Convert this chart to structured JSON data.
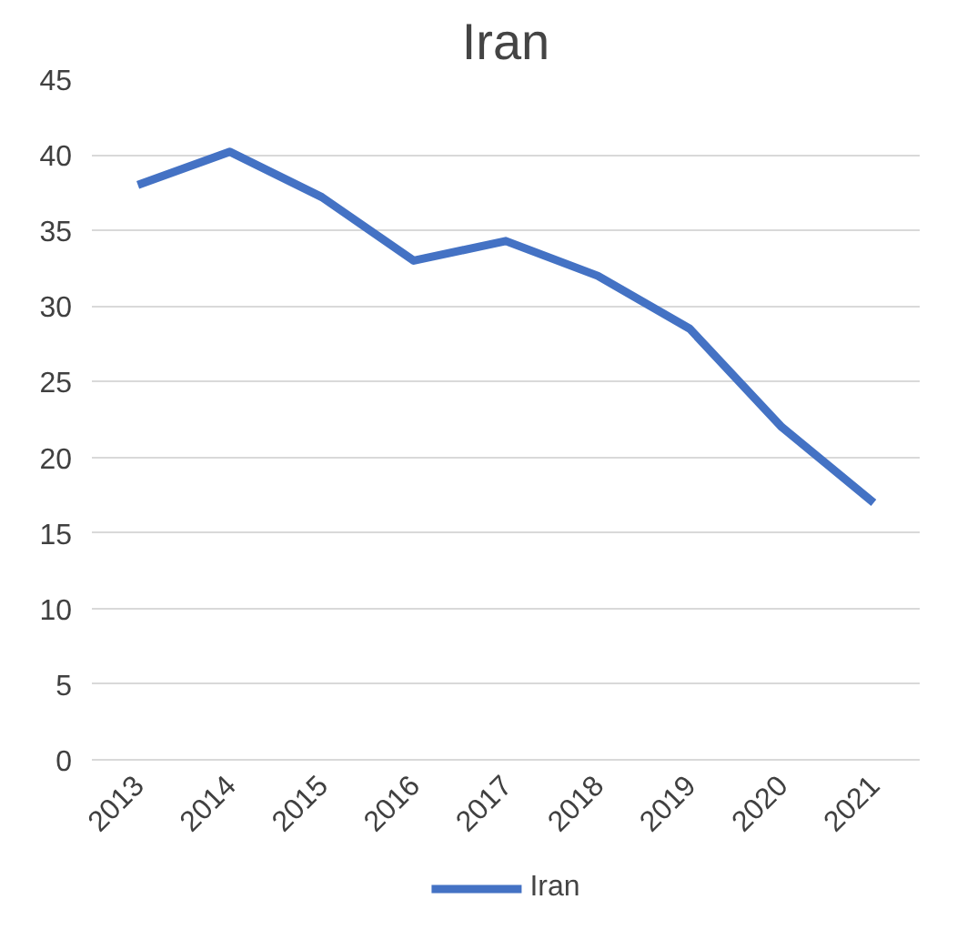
{
  "chart_data": {
    "type": "line",
    "title": "Iran",
    "categories": [
      "2013",
      "2014",
      "2015",
      "2016",
      "2017",
      "2018",
      "2019",
      "2020",
      "2021"
    ],
    "series": [
      {
        "name": "Iran",
        "color": "#4472c4",
        "values": [
          38,
          40.2,
          37.2,
          33,
          34.3,
          32,
          28.5,
          22,
          17
        ]
      }
    ],
    "ylim": [
      0,
      45
    ],
    "yticks": [
      0,
      5,
      10,
      15,
      20,
      25,
      30,
      35,
      40,
      45
    ],
    "grid": "y",
    "legend": "bottom",
    "marker": "none",
    "line_style": "solid"
  }
}
